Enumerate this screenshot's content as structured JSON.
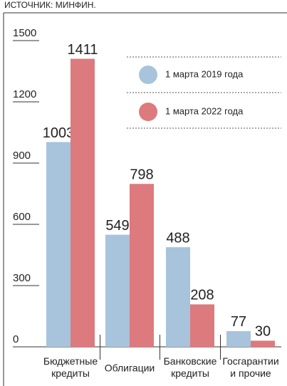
{
  "chart_data": {
    "type": "bar",
    "source": "ИСТОЧНИК: МИНФИН.",
    "categories": [
      "Бюджетные кредиты",
      "Облигации",
      "Банковские кредиты",
      "Госгарантии и прочие"
    ],
    "series": [
      {
        "name": "1 марта 2019 года",
        "color": "#a8c3dc",
        "values": [
          1003,
          549,
          488,
          77
        ]
      },
      {
        "name": "1 марта 2022 года",
        "color": "#dc7a7e",
        "values": [
          1411,
          798,
          208,
          30
        ]
      }
    ],
    "ylim": [
      0,
      1500
    ],
    "yticks": [
      0,
      300,
      600,
      900,
      1200,
      1500
    ]
  }
}
